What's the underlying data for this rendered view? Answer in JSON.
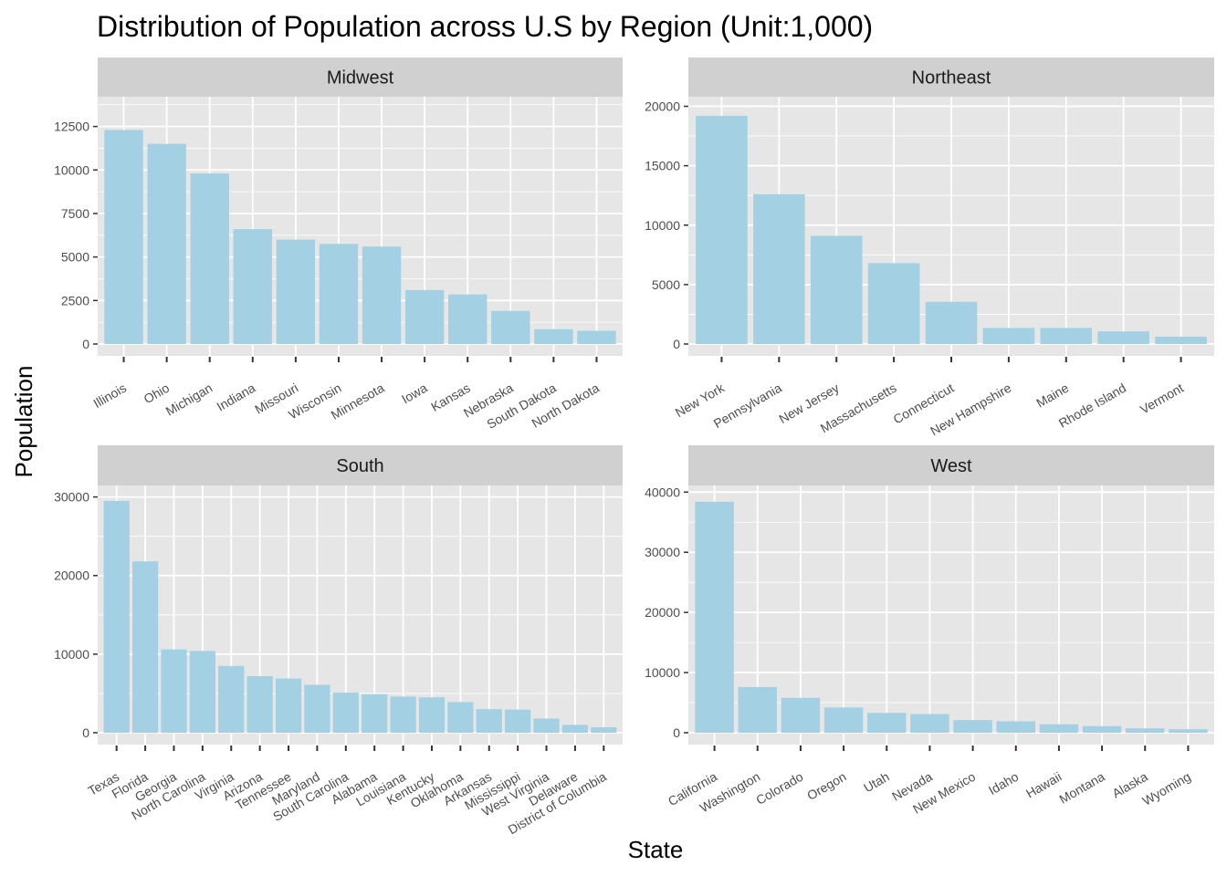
{
  "chart_data": {
    "type": "bar",
    "title": "Distribution of Population across U.S by Region (Unit:1,000)",
    "xlabel": "State",
    "ylabel": "Population",
    "bar_color": "#A3D0E2",
    "panel_background": "#E6E6E6",
    "strip_background": "#D0D0D0",
    "gridline_color": "#FFFFFF",
    "facets": [
      {
        "name": "Midwest",
        "ylim": [
          0,
          14000
        ],
        "yticks": [
          0,
          2500,
          5000,
          7500,
          10000,
          12500
        ],
        "categories": [
          "Illinois",
          "Ohio",
          "Michigan",
          "Indiana",
          "Missouri",
          "Wisconsin",
          "Minnesota",
          "Iowa",
          "Kansas",
          "Nebraska",
          "South Dakota",
          "North Dakota"
        ],
        "values": [
          12300,
          11500,
          9800,
          6600,
          6000,
          5750,
          5600,
          3100,
          2850,
          1900,
          850,
          760
        ]
      },
      {
        "name": "Northeast",
        "ylim": [
          0,
          20500
        ],
        "yticks": [
          0,
          5000,
          10000,
          15000,
          20000
        ],
        "categories": [
          "New York",
          "Pennsylvania",
          "New Jersey",
          "Massachusetts",
          "Connecticut",
          "New Hampshire",
          "Maine",
          "Rhode Island",
          "Vermont"
        ],
        "values": [
          19200,
          12600,
          9100,
          6800,
          3550,
          1350,
          1350,
          1060,
          620
        ]
      },
      {
        "name": "South",
        "ylim": [
          0,
          31000
        ],
        "yticks": [
          0,
          10000,
          20000,
          30000
        ],
        "categories": [
          "Texas",
          "Florida",
          "Georgia",
          "North Carolina",
          "Virginia",
          "Arizona",
          "Tennessee",
          "Maryland",
          "South Carolina",
          "Alabama",
          "Louisiana",
          "Kentucky",
          "Oklahoma",
          "Arkansas",
          "Mississippi",
          "West Virginia",
          "Delaware",
          "District of Columbia"
        ],
        "values": [
          29500,
          21800,
          10600,
          10400,
          8500,
          7200,
          6900,
          6100,
          5100,
          4900,
          4600,
          4500,
          3900,
          3000,
          2950,
          1800,
          1000,
          700
        ]
      },
      {
        "name": "West",
        "ylim": [
          0,
          40500
        ],
        "yticks": [
          0,
          10000,
          20000,
          30000,
          40000
        ],
        "categories": [
          "California",
          "Washington",
          "Colorado",
          "Oregon",
          "Utah",
          "Nevada",
          "New Mexico",
          "Idaho",
          "Hawaii",
          "Montana",
          "Alaska",
          "Wyoming"
        ],
        "values": [
          38400,
          7600,
          5800,
          4200,
          3300,
          3100,
          2100,
          1900,
          1400,
          1100,
          730,
          580
        ]
      }
    ]
  }
}
